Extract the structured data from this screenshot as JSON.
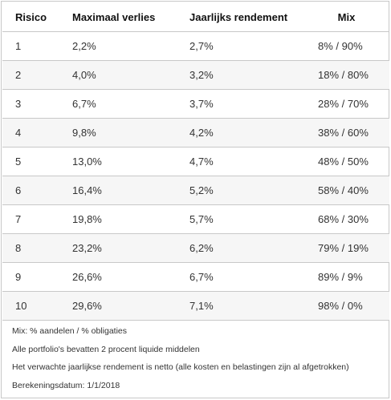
{
  "table": {
    "headers": {
      "risico": "Risico",
      "verlies": "Maximaal verlies",
      "rendement": "Jaarlijks rendement",
      "mix": "Mix"
    },
    "rows": [
      {
        "risico": "1",
        "verlies": "2,2%",
        "rendement": "2,7%",
        "mix": "8% / 90%"
      },
      {
        "risico": "2",
        "verlies": "4,0%",
        "rendement": "3,2%",
        "mix": "18% / 80%"
      },
      {
        "risico": "3",
        "verlies": "6,7%",
        "rendement": "3,7%",
        "mix": "28% / 70%"
      },
      {
        "risico": "4",
        "verlies": "9,8%",
        "rendement": "4,2%",
        "mix": "38% / 60%"
      },
      {
        "risico": "5",
        "verlies": "13,0%",
        "rendement": "4,7%",
        "mix": "48% / 50%"
      },
      {
        "risico": "6",
        "verlies": "16,4%",
        "rendement": "5,2%",
        "mix": "58% / 40%"
      },
      {
        "risico": "7",
        "verlies": "19,8%",
        "rendement": "5,7%",
        "mix": "68% / 30%"
      },
      {
        "risico": "8",
        "verlies": "23,2%",
        "rendement": "6,2%",
        "mix": "79% / 19%"
      },
      {
        "risico": "9",
        "verlies": "26,6%",
        "rendement": "6,7%",
        "mix": "89% / 9%"
      },
      {
        "risico": "10",
        "verlies": "29,6%",
        "rendement": "7,1%",
        "mix": "98% / 0%"
      }
    ]
  },
  "notes": [
    "Mix: % aandelen / % obligaties",
    "Alle portfolio's bevatten 2 procent liquide middelen",
    "Het verwachte jaarlijkse rendement is netto (alle kosten en belastingen zijn al afgetrokken)",
    "Berekeningsdatum: 1/1/2018"
  ],
  "colors": {
    "border": "#c8c8c8",
    "stripe": "#f6f6f6",
    "header_text": "#111111",
    "body_text": "#333333"
  }
}
